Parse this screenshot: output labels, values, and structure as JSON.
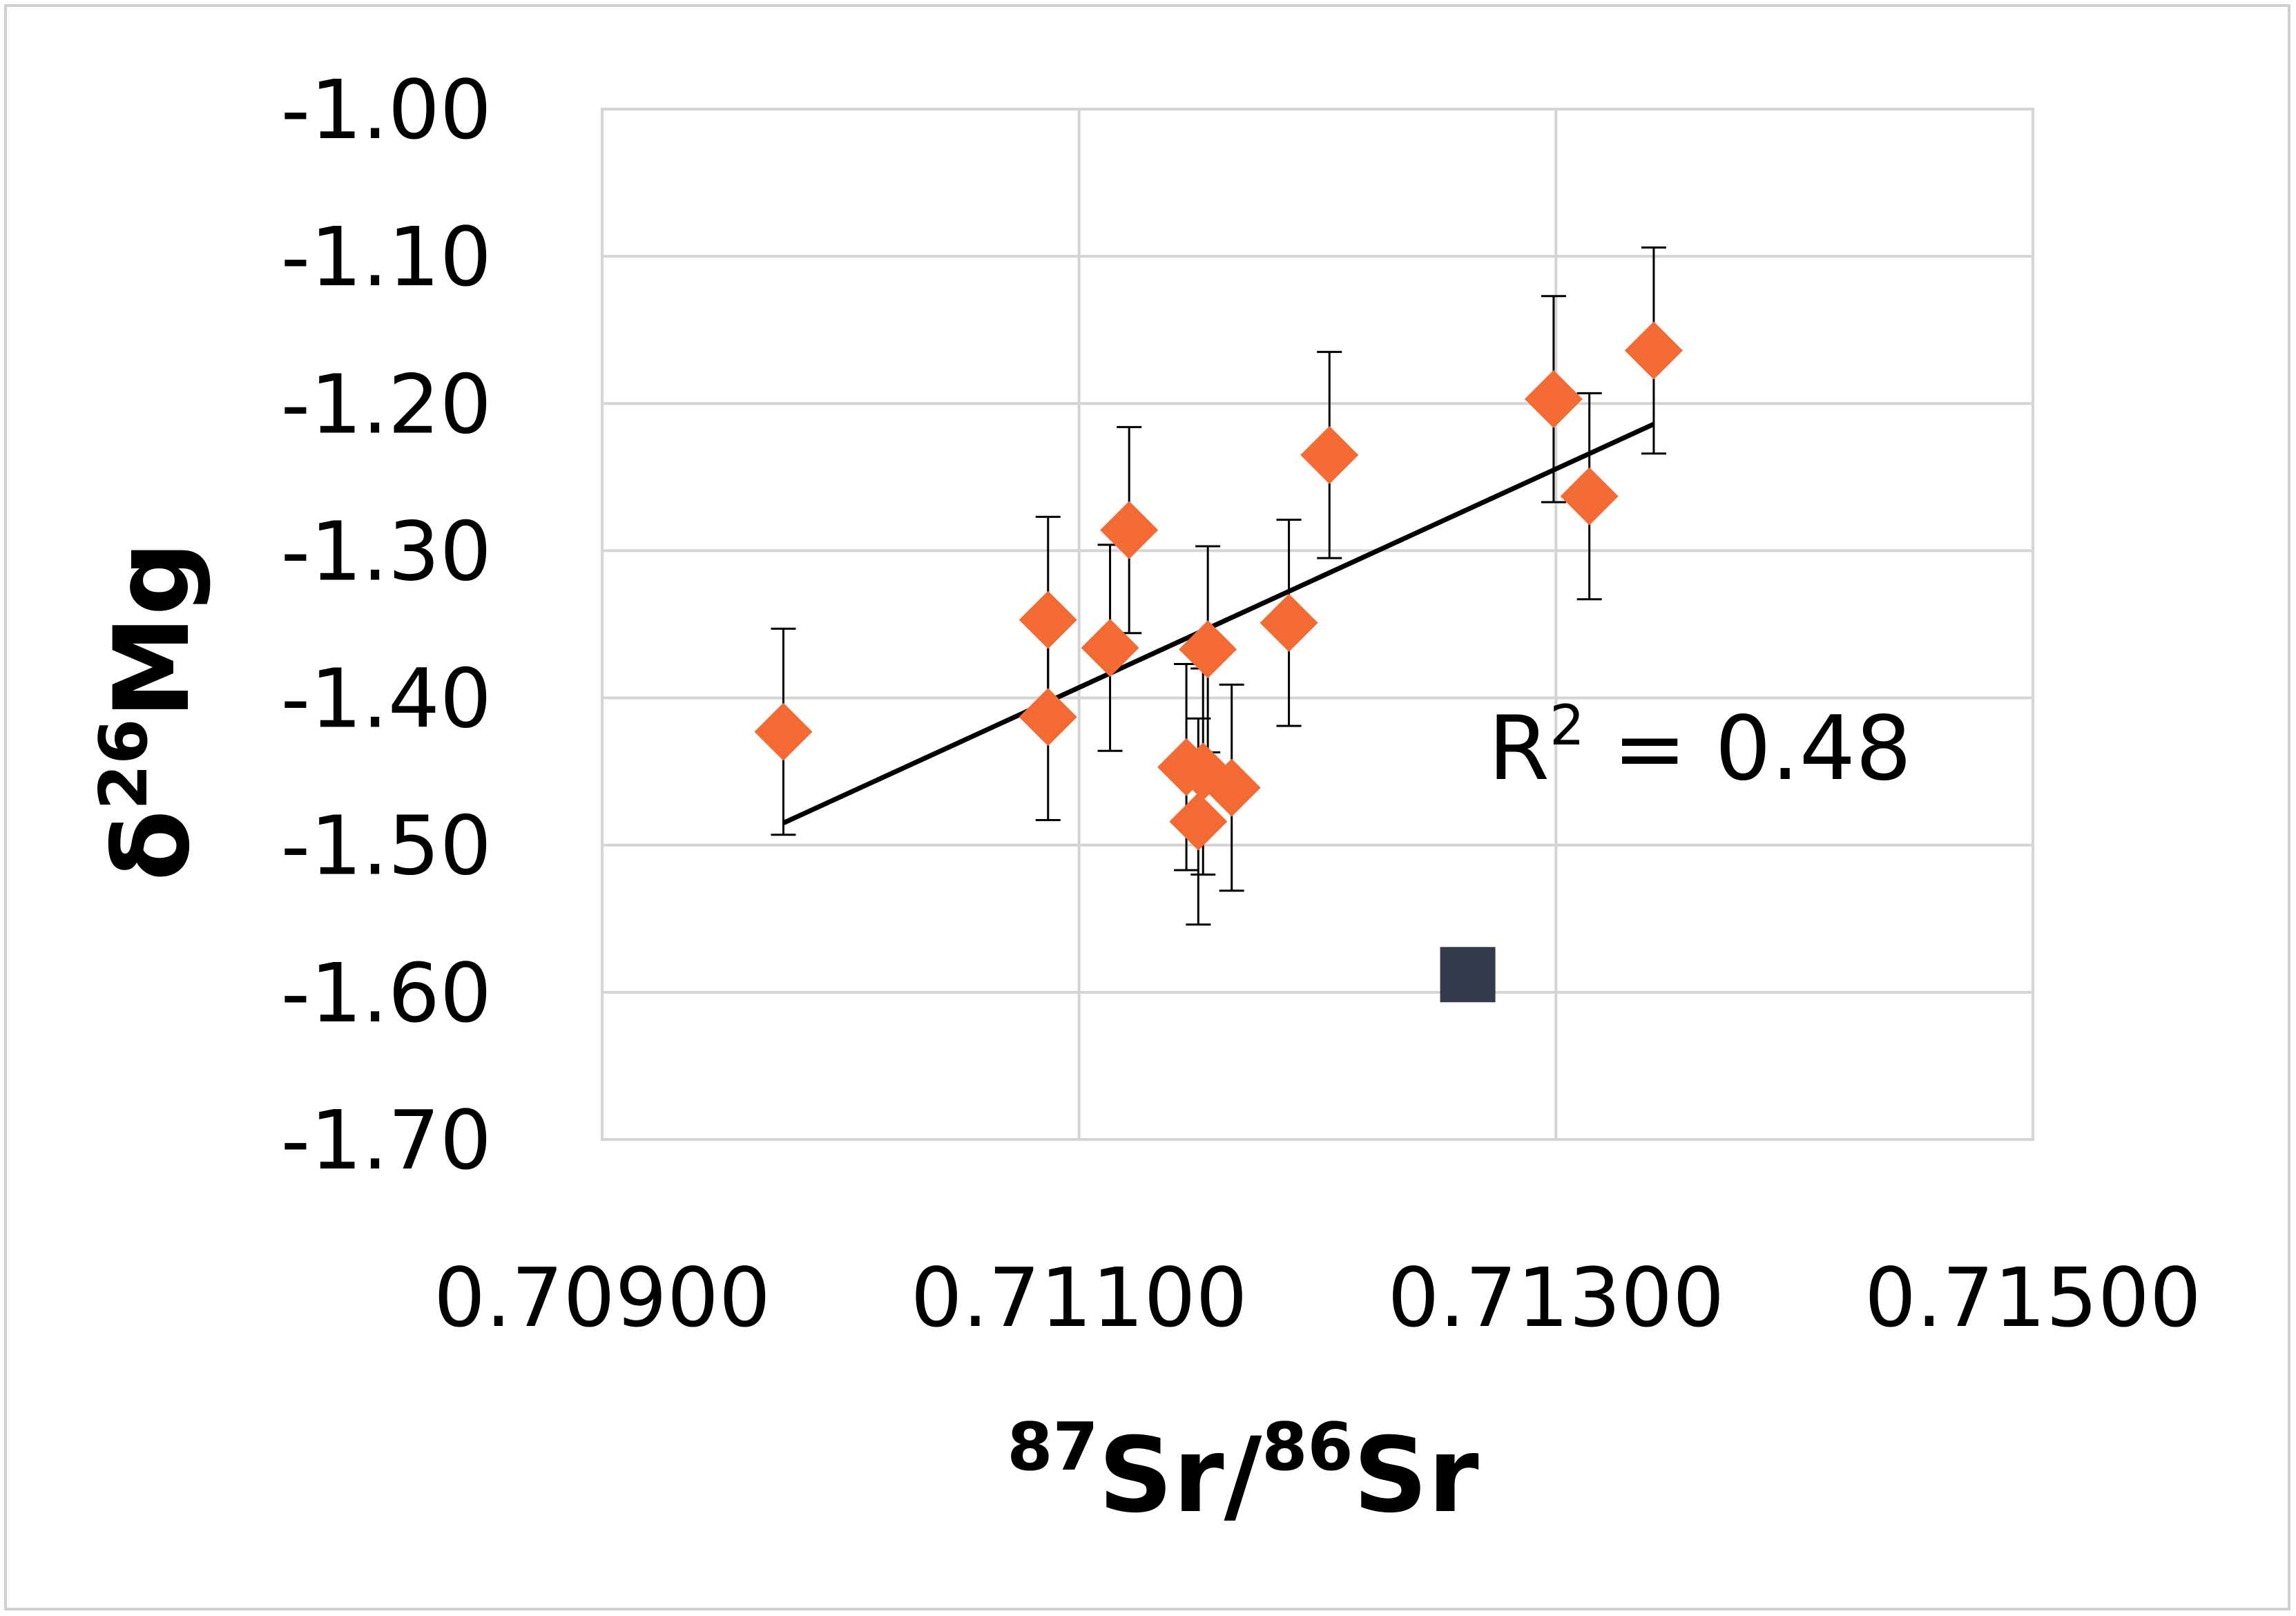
{
  "chart_data": {
    "type": "scatter",
    "xlabel": {
      "sup1": "87",
      "base1": "Sr/",
      "sup2": "86",
      "base2": "Sr"
    },
    "ylabel": {
      "base1": "δ",
      "sup": "26",
      "base2": "Mg"
    },
    "xlim": [
      0.709,
      0.715
    ],
    "ylim": [
      -1.7,
      -1.0
    ],
    "x_ticks": [
      {
        "value": 0.709,
        "label": "0.70900"
      },
      {
        "value": 0.711,
        "label": "0.71100"
      },
      {
        "value": 0.713,
        "label": "0.71300"
      },
      {
        "value": 0.715,
        "label": "0.71500"
      }
    ],
    "y_ticks": [
      {
        "value": -1.0,
        "label": "-1.00"
      },
      {
        "value": -1.1,
        "label": "-1.10"
      },
      {
        "value": -1.2,
        "label": "-1.20"
      },
      {
        "value": -1.3,
        "label": "-1.30"
      },
      {
        "value": -1.4,
        "label": "-1.40"
      },
      {
        "value": -1.5,
        "label": "-1.50"
      },
      {
        "value": -1.6,
        "label": "-1.60"
      },
      {
        "value": -1.7,
        "label": "-1.70"
      }
    ],
    "grid": true,
    "series": [
      {
        "marker": "diamond",
        "color": "#f46a35",
        "error": 0.07,
        "points": [
          {
            "x": 0.70976,
            "y": -1.423
          },
          {
            "x": 0.71087,
            "y": -1.347
          },
          {
            "x": 0.71087,
            "y": -1.413
          },
          {
            "x": 0.71113,
            "y": -1.366
          },
          {
            "x": 0.71121,
            "y": -1.286
          },
          {
            "x": 0.71145,
            "y": -1.447
          },
          {
            "x": 0.7115,
            "y": -1.484
          },
          {
            "x": 0.71152,
            "y": -1.45
          },
          {
            "x": 0.71154,
            "y": -1.367
          },
          {
            "x": 0.71164,
            "y": -1.461
          },
          {
            "x": 0.71188,
            "y": -1.349
          },
          {
            "x": 0.71205,
            "y": -1.235
          },
          {
            "x": 0.71299,
            "y": -1.197
          },
          {
            "x": 0.71314,
            "y": -1.263
          },
          {
            "x": 0.71341,
            "y": -1.164
          }
        ]
      },
      {
        "marker": "square",
        "color": "#323a4b",
        "points": [
          {
            "x": 0.71263,
            "y": -1.588
          }
        ]
      }
    ],
    "trendline": {
      "color": "#000000",
      "x": [
        0.70976,
        0.71341
      ],
      "y": [
        -1.485,
        -1.214
      ]
    },
    "annotation": {
      "base": "R",
      "sup": "2",
      "rest": " = 0.48"
    }
  }
}
